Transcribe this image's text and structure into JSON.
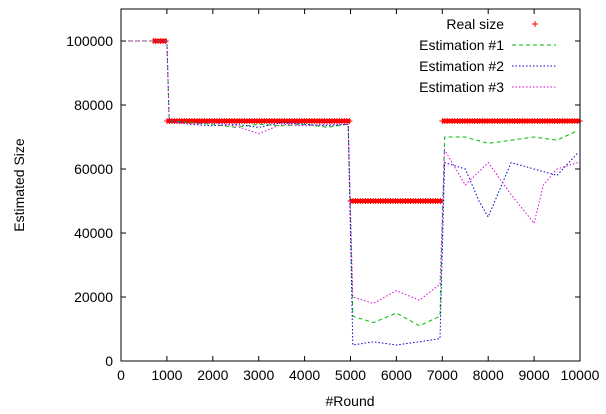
{
  "chart_data": {
    "type": "line",
    "title": "",
    "xlabel": "#Round",
    "ylabel": "Estimated Size",
    "xlim": [
      0,
      10000
    ],
    "ylim": [
      0,
      110000
    ],
    "xticks": [
      "0",
      "1000",
      "2000",
      "3000",
      "4000",
      "5000",
      "6000",
      "7000",
      "8000",
      "9000",
      "10000"
    ],
    "yticks": [
      "0",
      "20000",
      "40000",
      "60000",
      "80000",
      "100000"
    ],
    "grid": false,
    "legend_position": "top-right",
    "series": [
      {
        "name": "Real size",
        "style": "points",
        "color": "#ff0000",
        "segments": [
          {
            "x_start": 700,
            "x_end": 1000,
            "value": 100000
          },
          {
            "x_start": 1000,
            "x_end": 5000,
            "value": 75000
          },
          {
            "x_start": 5000,
            "x_end": 7000,
            "value": 50000
          },
          {
            "x_start": 7000,
            "x_end": 10000,
            "value": 75000
          }
        ]
      },
      {
        "name": "Estimation #1",
        "style": "dashed",
        "color": "#00bb00",
        "x": [
          0,
          1000,
          1050,
          1500,
          2000,
          2500,
          3000,
          3500,
          4000,
          4500,
          4950,
          5050,
          5500,
          6000,
          6500,
          6950,
          7050,
          7500,
          8000,
          8500,
          9000,
          9500,
          9950
        ],
        "y": [
          100000,
          100000,
          75000,
          74500,
          74000,
          73000,
          74000,
          73500,
          74000,
          73000,
          74000,
          14000,
          12000,
          15000,
          11000,
          14000,
          70000,
          70000,
          68000,
          69000,
          70000,
          69000,
          72000
        ]
      },
      {
        "name": "Estimation #2",
        "style": "dotted",
        "color": "#0000cc",
        "x": [
          0,
          1000,
          1050,
          1500,
          2000,
          2500,
          3000,
          3500,
          4000,
          4500,
          4950,
          5050,
          5500,
          6000,
          6500,
          6950,
          7050,
          7500,
          7800,
          8000,
          8500,
          9000,
          9500,
          9950
        ],
        "y": [
          100000,
          100000,
          75000,
          74000,
          73500,
          74000,
          73000,
          74500,
          74000,
          73500,
          74000,
          5000,
          6000,
          5000,
          6000,
          7000,
          62000,
          60000,
          50000,
          45000,
          62000,
          60000,
          58000,
          65000
        ]
      },
      {
        "name": "Estimation #3",
        "style": "dotted",
        "color": "#dd00dd",
        "x": [
          0,
          1000,
          1050,
          1500,
          2000,
          2500,
          3000,
          3500,
          4000,
          4500,
          4950,
          5050,
          5500,
          6000,
          6500,
          6950,
          7050,
          7500,
          8000,
          8500,
          9000,
          9200,
          9500,
          9950
        ],
        "y": [
          100000,
          100000,
          75000,
          74000,
          74500,
          73500,
          71000,
          74000,
          73500,
          74000,
          74000,
          20000,
          18000,
          22000,
          19000,
          24000,
          66000,
          55000,
          62000,
          52000,
          43000,
          55000,
          60000,
          62000
        ]
      }
    ]
  }
}
